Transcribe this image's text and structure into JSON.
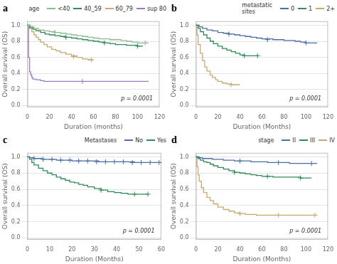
{
  "chart_data": [
    {
      "type": "step",
      "title": "a",
      "x_label": "Duration (months)",
      "y_label": "Overall survival (OS)",
      "annotation": "p = 0.0001",
      "legend_title": "age",
      "legend": "upper right",
      "grid": "y",
      "xlim": [
        0,
        120
      ],
      "ylim": [
        -0.02,
        1.05
      ],
      "xticks": [
        0,
        20,
        40,
        60,
        80,
        100,
        120
      ],
      "yticks": [
        {
          "value": 0.0,
          "label": "0.0"
        },
        0.2,
        0.4,
        0.6,
        0.8,
        {
          "value": 1.0,
          "label": "1.0"
        }
      ],
      "series": [
        {
          "name": "<40",
          "color": "#8fbc8f",
          "x": [
            0,
            3,
            6,
            10,
            15,
            20,
            25,
            30,
            35,
            40,
            45,
            50,
            55,
            60,
            65,
            70,
            75,
            80,
            85,
            90,
            95,
            100,
            105,
            110
          ],
          "values": [
            1.0,
            0.98,
            0.96,
            0.94,
            0.93,
            0.92,
            0.91,
            0.9,
            0.89,
            0.88,
            0.87,
            0.86,
            0.85,
            0.84,
            0.83,
            0.83,
            0.82,
            0.82,
            0.81,
            0.8,
            0.79,
            0.78,
            0.78,
            0.78
          ],
          "censor_x": [
            25,
            107
          ],
          "censor_y": [
            0.91,
            0.78
          ]
        },
        {
          "name": "40_59",
          "color": "#2e8b57",
          "x": [
            0,
            2,
            5,
            8,
            12,
            16,
            20,
            25,
            30,
            35,
            40,
            45,
            50,
            55,
            60,
            65,
            70,
            75,
            80,
            85,
            90,
            95,
            100,
            105
          ],
          "values": [
            1.0,
            0.97,
            0.95,
            0.93,
            0.91,
            0.89,
            0.88,
            0.87,
            0.86,
            0.85,
            0.84,
            0.83,
            0.82,
            0.81,
            0.8,
            0.79,
            0.78,
            0.77,
            0.76,
            0.76,
            0.75,
            0.75,
            0.74,
            0.74
          ],
          "censor_x": [
            35,
            70,
            100
          ],
          "censor_y": [
            0.85,
            0.78,
            0.74
          ]
        },
        {
          "name": "60_79",
          "color": "#c8a96e",
          "x": [
            0,
            2,
            4,
            6,
            8,
            10,
            12,
            15,
            18,
            22,
            26,
            30,
            35,
            40,
            45,
            50,
            55,
            60
          ],
          "values": [
            1.0,
            0.96,
            0.92,
            0.88,
            0.85,
            0.82,
            0.79,
            0.76,
            0.73,
            0.7,
            0.68,
            0.66,
            0.64,
            0.62,
            0.6,
            0.58,
            0.57,
            0.57
          ],
          "censor_x": [
            42,
            58
          ],
          "censor_y": [
            0.61,
            0.57
          ]
        },
        {
          "name": "sup 80",
          "color": "#9b7bb8",
          "x": [
            0,
            1,
            2,
            3,
            4,
            5,
            8,
            12,
            15,
            20,
            25,
            30,
            40,
            50,
            60,
            70,
            80,
            90,
            100,
            110
          ],
          "values": [
            1.0,
            0.6,
            0.42,
            0.38,
            0.35,
            0.33,
            0.32,
            0.31,
            0.3,
            0.3,
            0.3,
            0.3,
            0.3,
            0.3,
            0.3,
            0.3,
            0.3,
            0.3,
            0.3,
            0.3
          ],
          "censor_x": [
            50
          ],
          "censor_y": [
            0.3
          ]
        }
      ]
    },
    {
      "type": "step",
      "title": "b",
      "x_label": "Duration (Months)",
      "y_label": "Overall survival (OS)",
      "annotation": "p = 0.0001",
      "legend_title": "metastatic\nsites",
      "legend": "upper right",
      "grid": "y",
      "xlim": [
        0,
        120
      ],
      "ylim": [
        -0.02,
        1.05
      ],
      "xticks": [
        0,
        20,
        40,
        60,
        80,
        100,
        120
      ],
      "yticks": [
        {
          "value": 0.0,
          "label": "0.0"
        },
        0.2,
        0.4,
        0.6,
        0.8,
        {
          "value": 1.0,
          "label": "1.0"
        }
      ],
      "series": [
        {
          "name": "0",
          "color": "#4a6fa5",
          "x": [
            0,
            3,
            6,
            10,
            15,
            20,
            25,
            30,
            35,
            40,
            45,
            50,
            55,
            60,
            65,
            70,
            75,
            80,
            85,
            90,
            95,
            100,
            105,
            110
          ],
          "values": [
            1.0,
            0.98,
            0.96,
            0.94,
            0.93,
            0.91,
            0.9,
            0.89,
            0.88,
            0.87,
            0.86,
            0.85,
            0.84,
            0.83,
            0.83,
            0.82,
            0.82,
            0.81,
            0.81,
            0.8,
            0.79,
            0.78,
            0.78,
            0.78
          ],
          "censor_x": [
            30,
            65,
            100
          ],
          "censor_y": [
            0.89,
            0.82,
            0.78
          ]
        },
        {
          "name": "1",
          "color": "#2e8b57",
          "x": [
            0,
            2,
            4,
            7,
            10,
            13,
            16,
            20,
            24,
            28,
            32,
            36,
            40,
            44,
            48,
            52,
            56
          ],
          "values": [
            1.0,
            0.96,
            0.92,
            0.88,
            0.84,
            0.8,
            0.77,
            0.74,
            0.71,
            0.69,
            0.67,
            0.65,
            0.63,
            0.62,
            0.62,
            0.62,
            0.62
          ],
          "censor_x": [
            44,
            56
          ],
          "censor_y": [
            0.62,
            0.62
          ]
        },
        {
          "name": "2+",
          "color": "#c8a96e",
          "x": [
            0,
            1,
            2,
            4,
            6,
            8,
            10,
            13,
            15,
            18,
            20,
            24,
            28,
            32,
            36,
            40
          ],
          "values": [
            1.0,
            0.88,
            0.76,
            0.65,
            0.56,
            0.48,
            0.43,
            0.38,
            0.35,
            0.32,
            0.3,
            0.28,
            0.27,
            0.26,
            0.26,
            0.26
          ],
          "censor_x": [
            32
          ],
          "censor_y": [
            0.26
          ]
        }
      ]
    },
    {
      "type": "step",
      "title": "c",
      "x_label": "Duration (Months)",
      "y_label": "Overall survival (OS)",
      "annotation": "p = 0.0001",
      "legend_title": "Metastases",
      "legend": "upper right",
      "grid": "y",
      "xlim": [
        0,
        60
      ],
      "ylim": [
        -0.02,
        1.05
      ],
      "xticks": [
        0,
        10,
        20,
        30,
        40,
        50,
        60
      ],
      "yticks": [
        {
          "value": 0.0,
          "label": "0.0"
        },
        0.2,
        0.4,
        0.6,
        0.8,
        {
          "value": 1.0,
          "label": "1.0"
        }
      ],
      "series": [
        {
          "name": "No",
          "color": "#4a6fa5",
          "x": [
            0,
            1,
            3,
            5,
            7,
            10,
            13,
            16,
            20,
            24,
            28,
            32,
            36,
            40,
            44,
            48,
            52,
            56,
            60
          ],
          "values": [
            1.0,
            0.99,
            0.98,
            0.98,
            0.97,
            0.97,
            0.96,
            0.96,
            0.95,
            0.95,
            0.95,
            0.94,
            0.94,
            0.94,
            0.94,
            0.93,
            0.93,
            0.93,
            0.93
          ],
          "censor_x": [
            3,
            7,
            11,
            15,
            19,
            23,
            27,
            31,
            35,
            39,
            43,
            47,
            51,
            55,
            59
          ],
          "censor_y": [
            0.98,
            0.97,
            0.97,
            0.96,
            0.96,
            0.95,
            0.95,
            0.94,
            0.94,
            0.94,
            0.94,
            0.93,
            0.93,
            0.93,
            0.93
          ]
        },
        {
          "name": "Yes",
          "color": "#2e8b57",
          "x": [
            0,
            1,
            2,
            3,
            5,
            7,
            9,
            11,
            13,
            15,
            17,
            19,
            21,
            23,
            25,
            27,
            30,
            33,
            36,
            39,
            42,
            45,
            48,
            51,
            54
          ],
          "values": [
            1.0,
            0.97,
            0.93,
            0.9,
            0.86,
            0.83,
            0.8,
            0.78,
            0.75,
            0.73,
            0.71,
            0.69,
            0.68,
            0.66,
            0.65,
            0.63,
            0.61,
            0.59,
            0.57,
            0.56,
            0.55,
            0.54,
            0.54,
            0.54,
            0.54
          ],
          "censor_x": [
            33,
            48,
            54
          ],
          "censor_y": [
            0.59,
            0.54,
            0.54
          ]
        }
      ]
    },
    {
      "type": "step",
      "title": "d",
      "x_label": "Duration (Months)",
      "y_label": "Overall survival (OS)",
      "annotation": "p = 0.0001",
      "legend_title": "stage",
      "legend": "upper right",
      "grid": "y",
      "xlim": [
        0,
        120
      ],
      "ylim": [
        -0.02,
        1.05
      ],
      "xticks": [
        0,
        20,
        40,
        60,
        80,
        100,
        120
      ],
      "yticks": [
        {
          "value": 0.0,
          "label": "0.0"
        },
        0.2,
        0.4,
        0.6,
        0.8,
        {
          "value": 1.0,
          "label": "1.0"
        }
      ],
      "series": [
        {
          "name": "II",
          "color": "#4a6fa5",
          "x": [
            0,
            3,
            6,
            10,
            15,
            20,
            25,
            30,
            35,
            40,
            45,
            50,
            55,
            60,
            65,
            70,
            75,
            80,
            85,
            90,
            95,
            100,
            105,
            110
          ],
          "values": [
            1.0,
            0.99,
            0.98,
            0.98,
            0.97,
            0.97,
            0.96,
            0.96,
            0.95,
            0.95,
            0.95,
            0.94,
            0.94,
            0.94,
            0.93,
            0.93,
            0.93,
            0.93,
            0.92,
            0.92,
            0.92,
            0.92,
            0.92,
            0.92
          ],
          "censor_x": [
            40,
            75,
            105
          ],
          "censor_y": [
            0.95,
            0.93,
            0.92
          ]
        },
        {
          "name": "III",
          "color": "#2e8b57",
          "x": [
            0,
            2,
            4,
            7,
            10,
            13,
            16,
            20,
            25,
            30,
            35,
            40,
            45,
            50,
            55,
            60,
            65,
            70,
            75,
            80,
            85,
            90,
            95,
            100,
            105
          ],
          "values": [
            1.0,
            0.98,
            0.96,
            0.94,
            0.93,
            0.91,
            0.89,
            0.87,
            0.85,
            0.83,
            0.81,
            0.8,
            0.79,
            0.78,
            0.77,
            0.76,
            0.76,
            0.75,
            0.75,
            0.75,
            0.75,
            0.75,
            0.74,
            0.74,
            0.74
          ],
          "censor_x": [
            35,
            65,
            95
          ],
          "censor_y": [
            0.81,
            0.76,
            0.74
          ]
        },
        {
          "name": "IV",
          "color": "#c8a96e",
          "x": [
            0,
            1,
            2,
            3,
            5,
            7,
            10,
            13,
            16,
            20,
            25,
            30,
            35,
            40,
            45,
            50,
            55,
            60,
            65,
            70,
            75,
            80,
            85,
            90,
            95,
            100,
            105,
            110
          ],
          "values": [
            1.0,
            0.88,
            0.78,
            0.7,
            0.62,
            0.56,
            0.5,
            0.46,
            0.42,
            0.38,
            0.35,
            0.33,
            0.31,
            0.3,
            0.29,
            0.29,
            0.28,
            0.28,
            0.28,
            0.28,
            0.28,
            0.28,
            0.28,
            0.28,
            0.28,
            0.28,
            0.28,
            0.28
          ],
          "censor_x": [
            40,
            75,
            108
          ],
          "censor_y": [
            0.3,
            0.28,
            0.28
          ]
        }
      ]
    }
  ]
}
